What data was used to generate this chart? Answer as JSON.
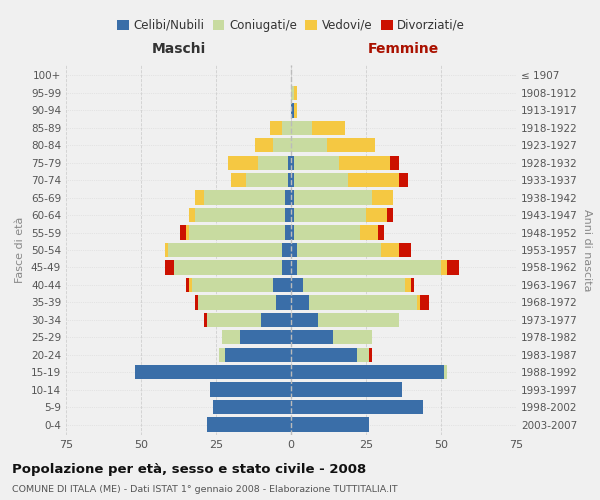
{
  "age_groups": [
    "0-4",
    "5-9",
    "10-14",
    "15-19",
    "20-24",
    "25-29",
    "30-34",
    "35-39",
    "40-44",
    "45-49",
    "50-54",
    "55-59",
    "60-64",
    "65-69",
    "70-74",
    "75-79",
    "80-84",
    "85-89",
    "90-94",
    "95-99",
    "100+"
  ],
  "birth_years": [
    "2003-2007",
    "1998-2002",
    "1993-1997",
    "1988-1992",
    "1983-1987",
    "1978-1982",
    "1973-1977",
    "1968-1972",
    "1963-1967",
    "1958-1962",
    "1953-1957",
    "1948-1952",
    "1943-1947",
    "1938-1942",
    "1933-1937",
    "1928-1932",
    "1923-1927",
    "1918-1922",
    "1913-1917",
    "1908-1912",
    "≤ 1907"
  ],
  "colors": {
    "celibi": "#3a6ea8",
    "coniugati": "#c8dba0",
    "vedovi": "#f5c842",
    "divorziati": "#cc1100"
  },
  "maschi": {
    "celibi": [
      28,
      26,
      27,
      52,
      22,
      17,
      10,
      5,
      6,
      3,
      3,
      2,
      2,
      2,
      1,
      1,
      0,
      0,
      0,
      0,
      0
    ],
    "coniugati": [
      0,
      0,
      0,
      0,
      2,
      6,
      18,
      26,
      27,
      36,
      38,
      32,
      30,
      27,
      14,
      10,
      6,
      3,
      0,
      0,
      0
    ],
    "vedovi": [
      0,
      0,
      0,
      0,
      0,
      0,
      0,
      0,
      1,
      0,
      1,
      1,
      2,
      3,
      5,
      10,
      6,
      4,
      0,
      0,
      0
    ],
    "divorziati": [
      0,
      0,
      0,
      0,
      0,
      0,
      1,
      1,
      1,
      3,
      0,
      2,
      0,
      0,
      0,
      0,
      0,
      0,
      0,
      0,
      0
    ]
  },
  "femmine": {
    "celibi": [
      26,
      44,
      37,
      51,
      22,
      14,
      9,
      6,
      4,
      2,
      2,
      1,
      1,
      1,
      1,
      1,
      0,
      0,
      1,
      0,
      0
    ],
    "coniugati": [
      0,
      0,
      0,
      1,
      4,
      13,
      27,
      36,
      34,
      48,
      28,
      22,
      24,
      26,
      18,
      15,
      12,
      7,
      0,
      1,
      0
    ],
    "vedovi": [
      0,
      0,
      0,
      0,
      0,
      0,
      0,
      1,
      2,
      2,
      6,
      6,
      7,
      7,
      17,
      17,
      16,
      11,
      1,
      1,
      0
    ],
    "divorziati": [
      0,
      0,
      0,
      0,
      1,
      0,
      0,
      3,
      1,
      4,
      4,
      2,
      2,
      0,
      3,
      3,
      0,
      0,
      0,
      0,
      0
    ]
  },
  "xlim": 75,
  "title": "Popolazione per età, sesso e stato civile - 2008",
  "subtitle": "COMUNE DI ITALA (ME) - Dati ISTAT 1° gennaio 2008 - Elaborazione TUTTITALIA.IT",
  "ylabel_left": "Fasce di età",
  "ylabel_right": "Anni di nascita",
  "xlabel_left": "Maschi",
  "xlabel_right": "Femmine",
  "bg_color": "#f0f0f0",
  "grid_color": "#cccccc"
}
